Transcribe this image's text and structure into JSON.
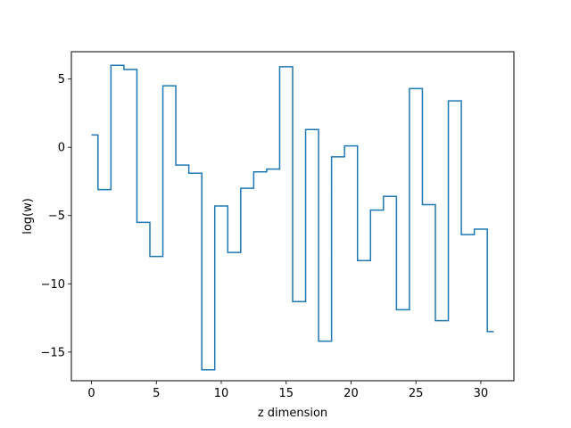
{
  "chart_data": {
    "type": "line",
    "step": "mid",
    "xlabel": "z dimension",
    "ylabel": "log(w)",
    "xlim": [
      -1.55,
      32.55
    ],
    "ylim": [
      -17.1,
      7.0
    ],
    "xticks": [
      0,
      5,
      10,
      15,
      20,
      25,
      30
    ],
    "xtick_labels": [
      "0",
      "5",
      "10",
      "15",
      "20",
      "25",
      "30"
    ],
    "yticks": [
      5,
      0,
      -5,
      -10,
      -15
    ],
    "ytick_labels": [
      "5",
      "0",
      "−5",
      "−10",
      "−15"
    ],
    "grid": false,
    "series": [
      {
        "color": "#1f77b4",
        "x": [
          0,
          1,
          2,
          3,
          4,
          5,
          6,
          7,
          8,
          9,
          10,
          11,
          12,
          13,
          14,
          15,
          16,
          17,
          18,
          19,
          20,
          21,
          22,
          23,
          24,
          25,
          26,
          27,
          28,
          29,
          30,
          31
        ],
        "values": [
          0.9,
          -3.1,
          6.0,
          5.7,
          -5.5,
          -8.0,
          4.5,
          -1.3,
          -1.9,
          -16.3,
          -4.3,
          -7.7,
          -3.0,
          -1.8,
          -1.6,
          5.9,
          -11.3,
          1.3,
          -14.2,
          -0.7,
          0.1,
          -8.3,
          -4.6,
          -3.6,
          -11.9,
          4.3,
          -4.2,
          -12.7,
          3.4,
          -6.4,
          -6.0,
          -13.5
        ]
      }
    ]
  }
}
